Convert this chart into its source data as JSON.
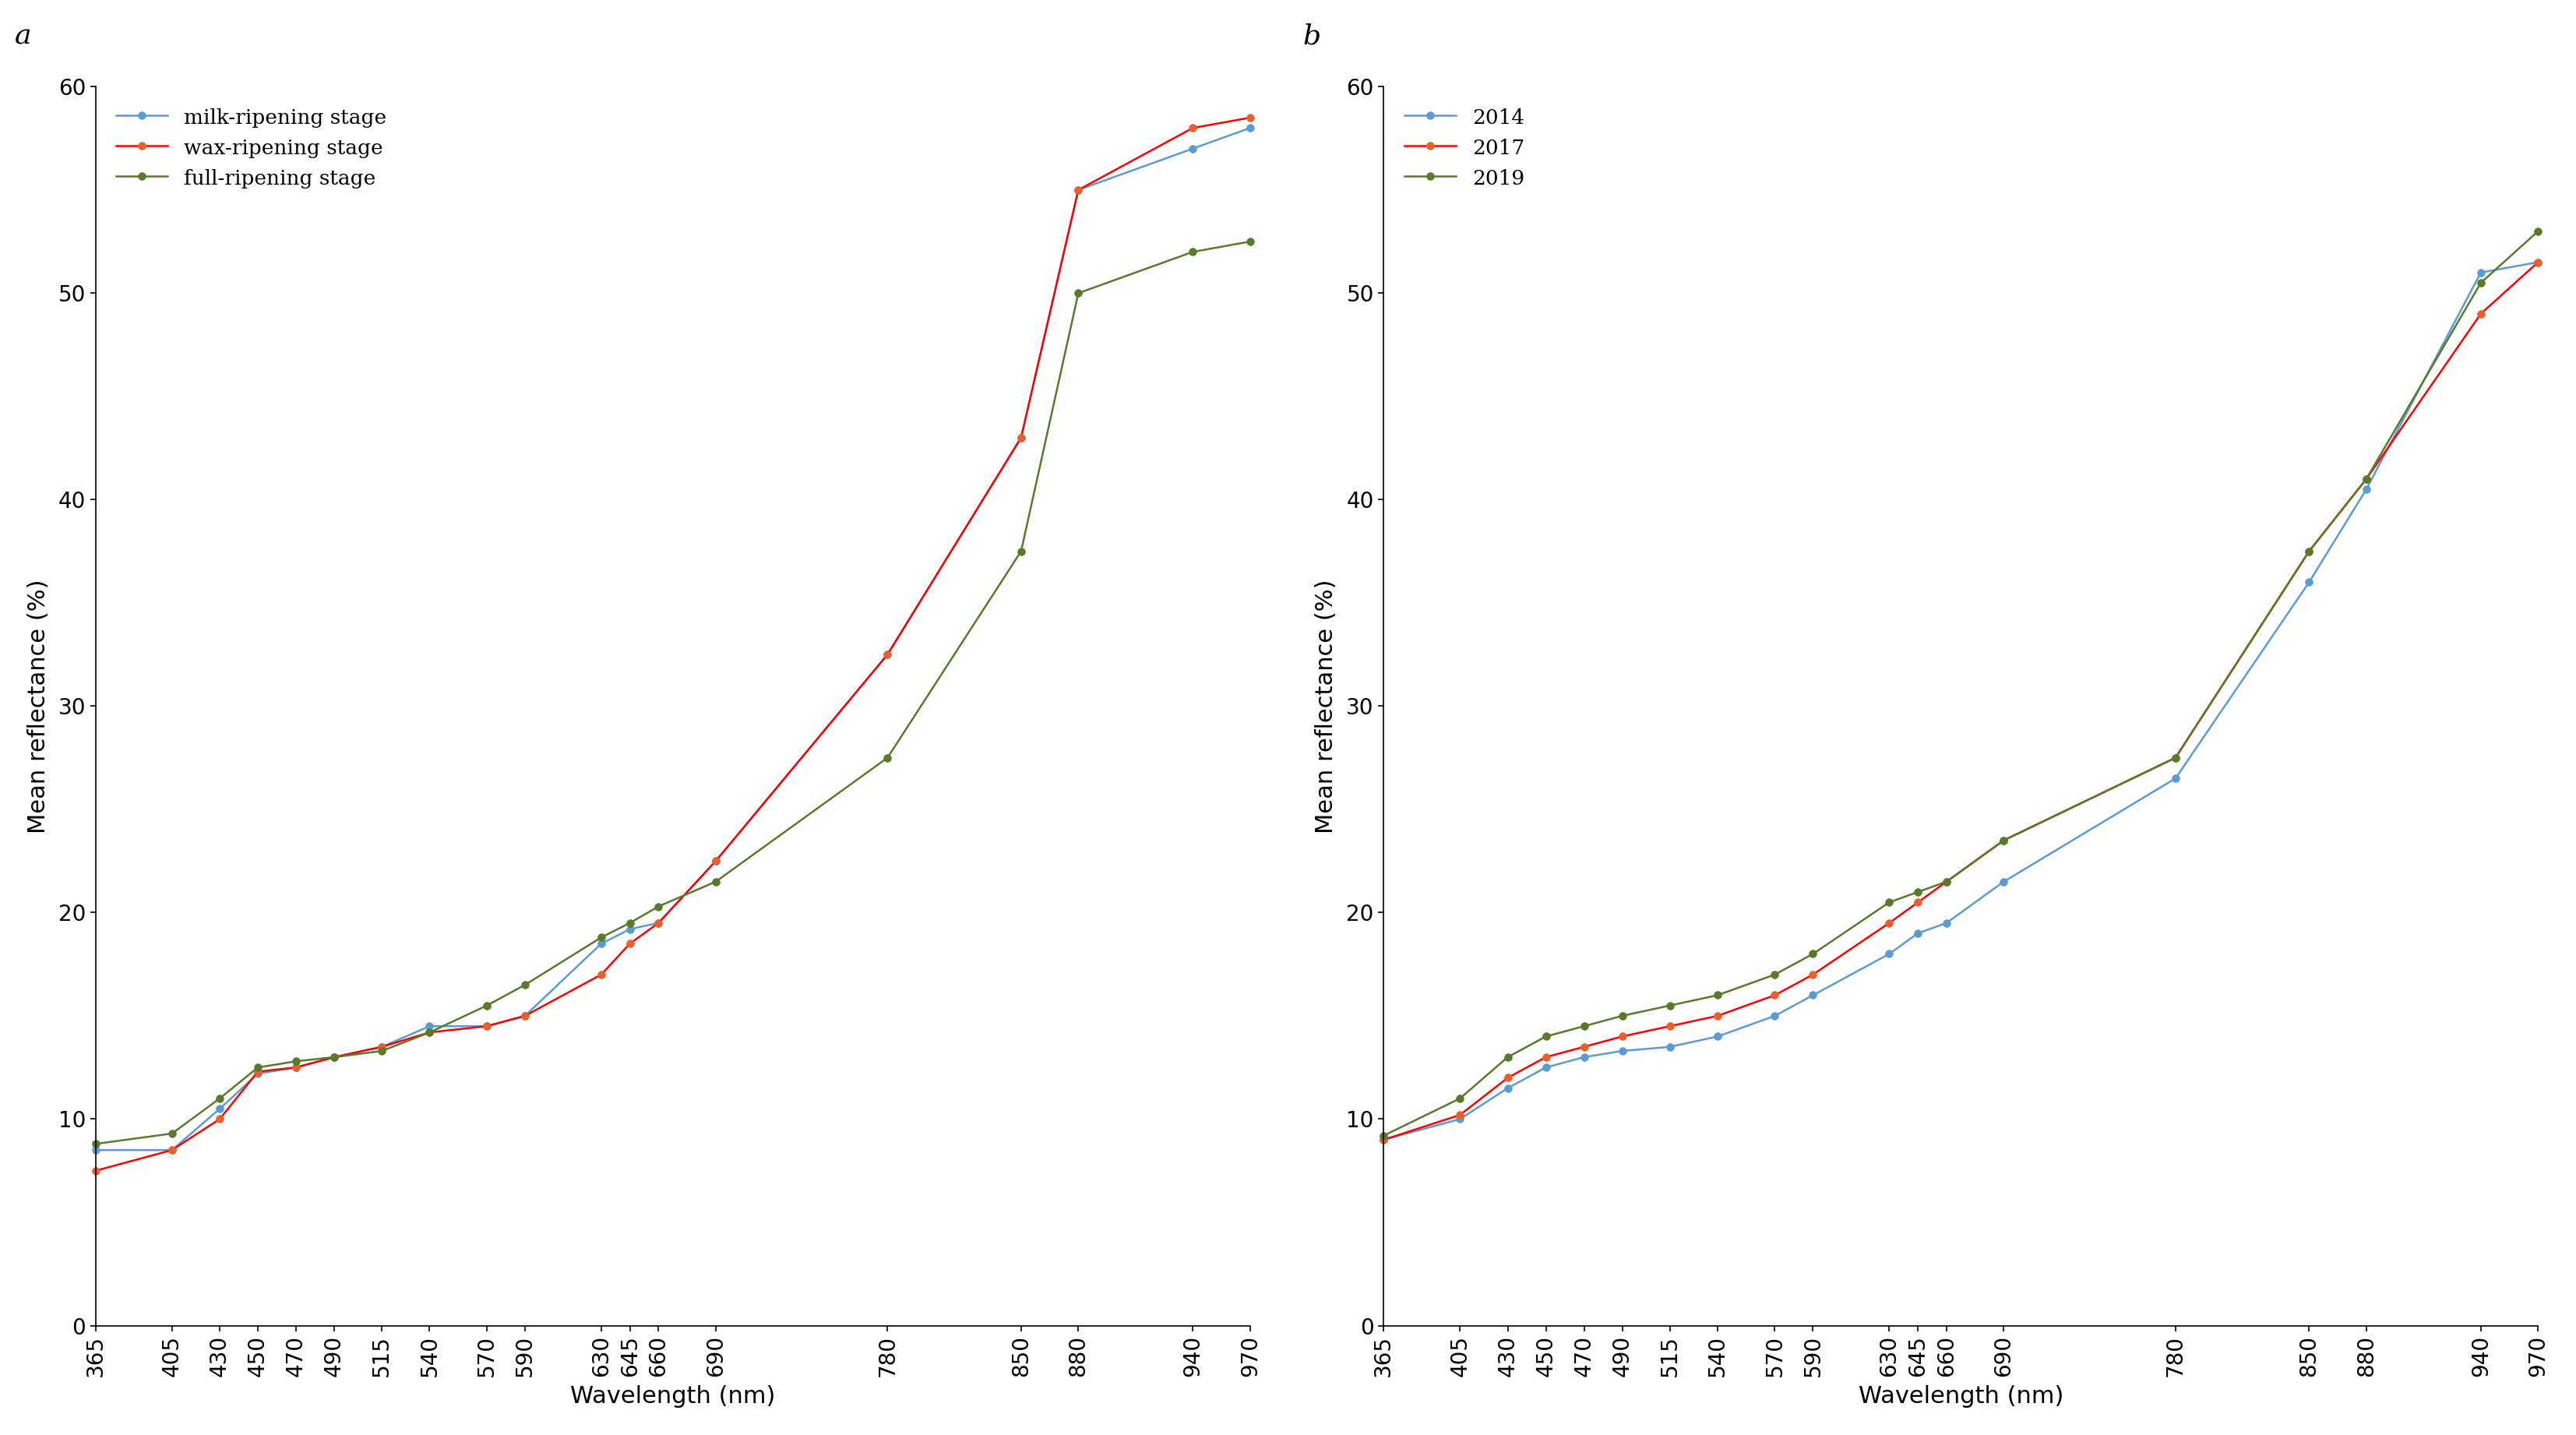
{
  "wavelengths": [
    365,
    405,
    430,
    450,
    470,
    490,
    515,
    540,
    570,
    590,
    630,
    645,
    660,
    690,
    780,
    850,
    880,
    940,
    970
  ],
  "panel_a": {
    "milk": [
      8.5,
      8.5,
      10.5,
      12.2,
      12.5,
      13.0,
      13.5,
      14.5,
      14.5,
      15.0,
      18.5,
      19.2,
      19.5,
      22.5,
      32.5,
      43.0,
      55.0,
      57.0,
      58.0
    ],
    "wax": [
      7.5,
      8.5,
      10.0,
      12.3,
      12.5,
      13.0,
      13.5,
      14.2,
      14.5,
      15.0,
      17.0,
      18.5,
      19.5,
      22.5,
      32.5,
      43.0,
      55.0,
      58.0,
      58.5
    ],
    "full": [
      8.8,
      9.3,
      11.0,
      12.5,
      12.8,
      13.0,
      13.3,
      14.2,
      15.5,
      16.5,
      18.8,
      19.5,
      20.3,
      21.5,
      27.5,
      37.5,
      50.0,
      52.0,
      52.5
    ]
  },
  "panel_b": {
    "y2014": [
      9.0,
      10.0,
      11.5,
      12.5,
      13.0,
      13.3,
      13.5,
      14.0,
      15.0,
      16.0,
      18.0,
      19.0,
      19.5,
      21.5,
      26.5,
      36.0,
      40.5,
      51.0,
      51.5
    ],
    "y2017": [
      9.0,
      10.2,
      12.0,
      13.0,
      13.5,
      14.0,
      14.5,
      15.0,
      16.0,
      17.0,
      19.5,
      20.5,
      21.5,
      23.5,
      27.5,
      37.5,
      41.0,
      49.0,
      51.5
    ],
    "y2019": [
      9.2,
      11.0,
      13.0,
      14.0,
      14.5,
      15.0,
      15.5,
      16.0,
      17.0,
      18.0,
      20.5,
      21.0,
      21.5,
      23.5,
      27.5,
      37.5,
      41.0,
      50.5,
      53.0
    ]
  },
  "line_colors": {
    "blue": "#5B9BD5",
    "red": "#FF0000",
    "green": "#5A7A2B"
  },
  "marker_colors": {
    "blue": "#5B9BD5",
    "red": "#E8612C",
    "green": "#5A7A2B"
  },
  "ylim": [
    0,
    60
  ],
  "yticks": [
    0,
    10,
    20,
    30,
    40,
    50,
    60
  ],
  "xlabel": "Wavelength (nm)",
  "ylabel": "Mean reflectance (%)",
  "legend_a": [
    "milk-ripening stage",
    "wax-ripening stage",
    "full-ripening stage"
  ],
  "legend_b": [
    "2014",
    "2017",
    "2019"
  ],
  "panel_labels": [
    "a",
    "b"
  ]
}
